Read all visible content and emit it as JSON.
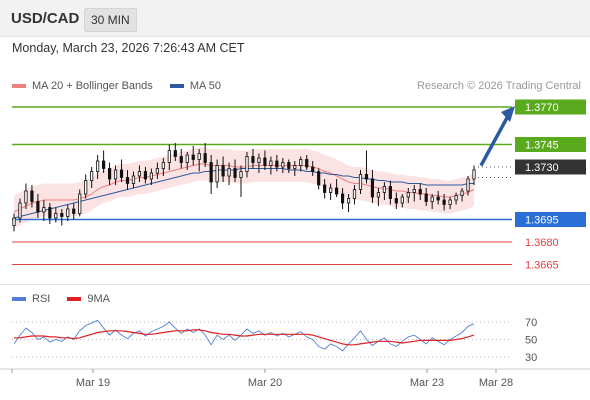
{
  "header": {
    "pair": "USD/CAD",
    "timeframe": "30 MIN"
  },
  "date_text": "Monday, March 23, 2026 7:26:43 AM CET",
  "legend": {
    "items": [
      {
        "label": "MA 20 + Bollinger Bands",
        "color": "#f08080"
      },
      {
        "label": "MA 50",
        "color": "#2b5aa0"
      }
    ],
    "credit": "Research © 2026 Trading Central"
  },
  "rsi_legend": {
    "items": [
      {
        "label": "RSI",
        "color": "#4f7fd6"
      },
      {
        "label": "9MA",
        "color": "#e02020"
      }
    ]
  },
  "chart_data": [
    {
      "type": "candlestick",
      "ylim": [
        1.365,
        1.378
      ],
      "current_price": {
        "value": 1.373,
        "label": "1.3730",
        "color": "#333333"
      },
      "levels": [
        {
          "value": 1.377,
          "label": "1.3770",
          "color": "#5aaa1e",
          "kind": "resistance"
        },
        {
          "value": 1.3745,
          "label": "1.3745",
          "color": "#5aaa1e",
          "kind": "resistance"
        },
        {
          "value": 1.3695,
          "label": "1.3695",
          "color": "#2a6fd6",
          "kind": "pivot"
        },
        {
          "value": 1.368,
          "label": "1.3680",
          "color": "#e04040",
          "kind": "support"
        },
        {
          "value": 1.3665,
          "label": "1.3665",
          "color": "#e04040",
          "kind": "support"
        }
      ],
      "forecast_arrow": {
        "from": 1.3731,
        "to": 1.3768,
        "color": "#2b5aa0"
      },
      "x_ticks": [
        "Mar 19",
        "Mar 20",
        "Mar 23",
        "Mar 28"
      ],
      "ohlc": [
        [
          1.3691,
          1.3699,
          1.3687,
          1.3696
        ],
        [
          1.3696,
          1.3709,
          1.3693,
          1.3706
        ],
        [
          1.3706,
          1.3719,
          1.3702,
          1.3714
        ],
        [
          1.3714,
          1.3718,
          1.3703,
          1.3707
        ],
        [
          1.3707,
          1.3712,
          1.3696,
          1.37
        ],
        [
          1.37,
          1.3708,
          1.3694,
          1.3703
        ],
        [
          1.3703,
          1.3706,
          1.3692,
          1.3696
        ],
        [
          1.3696,
          1.3703,
          1.3693,
          1.3699
        ],
        [
          1.3699,
          1.3702,
          1.3691,
          1.3697
        ],
        [
          1.3697,
          1.3705,
          1.3694,
          1.3702
        ],
        [
          1.3702,
          1.3706,
          1.3695,
          1.3699
        ],
        [
          1.3699,
          1.3715,
          1.3697,
          1.3712
        ],
        [
          1.3712,
          1.3725,
          1.3709,
          1.3721
        ],
        [
          1.3721,
          1.373,
          1.3716,
          1.3727
        ],
        [
          1.3727,
          1.3738,
          1.3722,
          1.3734
        ],
        [
          1.3734,
          1.3741,
          1.3726,
          1.3729
        ],
        [
          1.3729,
          1.3733,
          1.3718,
          1.3722
        ],
        [
          1.3722,
          1.3731,
          1.3718,
          1.3728
        ],
        [
          1.3728,
          1.3735,
          1.372,
          1.3723
        ],
        [
          1.3723,
          1.3728,
          1.3715,
          1.3719
        ],
        [
          1.3719,
          1.3727,
          1.3716,
          1.3724
        ],
        [
          1.3724,
          1.3731,
          1.372,
          1.3727
        ],
        [
          1.3727,
          1.373,
          1.3719,
          1.3722
        ],
        [
          1.3722,
          1.3729,
          1.3718,
          1.3726
        ],
        [
          1.3726,
          1.3733,
          1.3722,
          1.3729
        ],
        [
          1.3729,
          1.3736,
          1.3724,
          1.3733
        ],
        [
          1.3733,
          1.3745,
          1.3728,
          1.3741
        ],
        [
          1.3741,
          1.3746,
          1.3734,
          1.3737
        ],
        [
          1.3737,
          1.3742,
          1.3729,
          1.3733
        ],
        [
          1.3733,
          1.374,
          1.3728,
          1.3738
        ],
        [
          1.3738,
          1.3744,
          1.3731,
          1.3735
        ],
        [
          1.3735,
          1.3742,
          1.3727,
          1.3739
        ],
        [
          1.3739,
          1.3746,
          1.373,
          1.3733
        ],
        [
          1.3733,
          1.3738,
          1.3712,
          1.372
        ],
        [
          1.372,
          1.3735,
          1.3716,
          1.3731
        ],
        [
          1.3731,
          1.3737,
          1.372,
          1.3724
        ],
        [
          1.3724,
          1.3733,
          1.3718,
          1.3729
        ],
        [
          1.3729,
          1.3735,
          1.372,
          1.3723
        ],
        [
          1.3723,
          1.3731,
          1.371,
          1.3727
        ],
        [
          1.3727,
          1.374,
          1.3723,
          1.3737
        ],
        [
          1.3737,
          1.3742,
          1.3729,
          1.3733
        ],
        [
          1.3733,
          1.3739,
          1.3726,
          1.3736
        ],
        [
          1.3736,
          1.3741,
          1.3728,
          1.3731
        ],
        [
          1.3731,
          1.3737,
          1.3725,
          1.3734
        ],
        [
          1.3734,
          1.3738,
          1.3727,
          1.373
        ],
        [
          1.373,
          1.3736,
          1.3726,
          1.3733
        ],
        [
          1.3733,
          1.3735,
          1.3726,
          1.3729
        ],
        [
          1.3729,
          1.3734,
          1.3724,
          1.3731
        ],
        [
          1.3731,
          1.3737,
          1.3727,
          1.3735
        ],
        [
          1.3735,
          1.3738,
          1.3728,
          1.373
        ],
        [
          1.373,
          1.3734,
          1.3724,
          1.3727
        ],
        [
          1.3727,
          1.3729,
          1.3715,
          1.3718
        ],
        [
          1.3718,
          1.3722,
          1.3709,
          1.3713
        ],
        [
          1.3713,
          1.3719,
          1.3708,
          1.3716
        ],
        [
          1.3716,
          1.3722,
          1.371,
          1.3712
        ],
        [
          1.3712,
          1.3716,
          1.3702,
          1.3706
        ],
        [
          1.3706,
          1.3712,
          1.37,
          1.3709
        ],
        [
          1.3709,
          1.3718,
          1.3705,
          1.3715
        ],
        [
          1.3715,
          1.3728,
          1.3712,
          1.3725
        ],
        [
          1.3725,
          1.3741,
          1.3719,
          1.3722
        ],
        [
          1.3722,
          1.3728,
          1.3706,
          1.371
        ],
        [
          1.371,
          1.3716,
          1.3704,
          1.3713
        ],
        [
          1.3713,
          1.372,
          1.3708,
          1.3717
        ],
        [
          1.3717,
          1.3721,
          1.3705,
          1.3709
        ],
        [
          1.3709,
          1.3713,
          1.3702,
          1.3706
        ],
        [
          1.3706,
          1.3712,
          1.3703,
          1.371
        ],
        [
          1.371,
          1.3716,
          1.3706,
          1.3713
        ],
        [
          1.3713,
          1.3718,
          1.3707,
          1.3715
        ],
        [
          1.3715,
          1.3719,
          1.3708,
          1.3712
        ],
        [
          1.3712,
          1.3716,
          1.3704,
          1.3707
        ],
        [
          1.3707,
          1.3712,
          1.3702,
          1.371
        ],
        [
          1.371,
          1.3714,
          1.3705,
          1.3708
        ],
        [
          1.3708,
          1.3712,
          1.3701,
          1.3705
        ],
        [
          1.3705,
          1.371,
          1.3702,
          1.3708
        ],
        [
          1.3708,
          1.3713,
          1.3705,
          1.3711
        ],
        [
          1.3711,
          1.3716,
          1.3707,
          1.3714
        ],
        [
          1.3714,
          1.3724,
          1.3711,
          1.3722
        ],
        [
          1.3722,
          1.3731,
          1.3718,
          1.3728
        ]
      ],
      "ma20": [
        1.37,
        1.3702,
        1.3704,
        1.3706,
        1.3707,
        1.3708,
        1.3708,
        1.3708,
        1.3708,
        1.3708,
        1.3708,
        1.3709,
        1.371,
        1.3712,
        1.3715,
        1.3717,
        1.3718,
        1.372,
        1.3721,
        1.3721,
        1.3722,
        1.3723,
        1.3723,
        1.3724,
        1.3725,
        1.3726,
        1.3727,
        1.3728,
        1.3729,
        1.373,
        1.3731,
        1.3732,
        1.3732,
        1.3731,
        1.3731,
        1.3731,
        1.3731,
        1.373,
        1.373,
        1.373,
        1.3731,
        1.3731,
        1.3731,
        1.3731,
        1.3731,
        1.3731,
        1.3731,
        1.3731,
        1.3731,
        1.3731,
        1.373,
        1.3729,
        1.3727,
        1.3726,
        1.3724,
        1.3722,
        1.372,
        1.3719,
        1.3719,
        1.3718,
        1.3717,
        1.3716,
        1.3716,
        1.3715,
        1.3714,
        1.3714,
        1.3713,
        1.3713,
        1.3712,
        1.3712,
        1.3711,
        1.3711,
        1.371,
        1.371,
        1.3711,
        1.3712,
        1.3713,
        1.3715
      ],
      "ma50": [
        1.3696,
        1.3697,
        1.3698,
        1.3699,
        1.37,
        1.3701,
        1.3702,
        1.3703,
        1.3704,
        1.3705,
        1.3706,
        1.3707,
        1.3708,
        1.3709,
        1.371,
        1.3711,
        1.3712,
        1.3713,
        1.3714,
        1.3715,
        1.3716,
        1.3717,
        1.3718,
        1.3719,
        1.372,
        1.3721,
        1.3722,
        1.3723,
        1.3724,
        1.3725,
        1.3726,
        1.3726,
        1.3727,
        1.3727,
        1.3728,
        1.3728,
        1.3728,
        1.3728,
        1.3729,
        1.3729,
        1.3729,
        1.3729,
        1.3729,
        1.3729,
        1.3729,
        1.3729,
        1.3728,
        1.3728,
        1.3728,
        1.3727,
        1.3727,
        1.3726,
        1.3726,
        1.3725,
        1.3725,
        1.3724,
        1.3724,
        1.3723,
        1.3723,
        1.3722,
        1.3722,
        1.3721,
        1.3721,
        1.372,
        1.372,
        1.372,
        1.3719,
        1.3719,
        1.3719,
        1.3718,
        1.3718,
        1.3718,
        1.3718,
        1.3718,
        1.3718,
        1.3718,
        1.3719,
        1.3719
      ],
      "bb_width": 0.0011
    },
    {
      "type": "line",
      "title": "RSI",
      "ylim": [
        20,
        80
      ],
      "y_ticks": [
        70,
        50,
        30
      ],
      "series": [
        {
          "name": "RSI",
          "color": "#4f7fd6",
          "values": [
            45,
            55,
            63,
            58,
            50,
            53,
            47,
            50,
            48,
            53,
            50,
            60,
            66,
            69,
            72,
            63,
            55,
            61,
            55,
            51,
            57,
            60,
            54,
            59,
            62,
            65,
            70,
            63,
            57,
            62,
            58,
            62,
            55,
            44,
            55,
            50,
            55,
            49,
            55,
            62,
            57,
            60,
            55,
            58,
            54,
            57,
            53,
            56,
            59,
            53,
            50,
            42,
            39,
            45,
            42,
            37,
            45,
            52,
            60,
            50,
            43,
            48,
            52,
            45,
            42,
            48,
            53,
            55,
            50,
            45,
            52,
            48,
            44,
            50,
            54,
            58,
            65,
            68
          ]
        },
        {
          "name": "9MA",
          "color": "#e02020",
          "values": [
            52,
            52,
            53,
            54,
            54,
            54,
            53,
            53,
            52,
            52,
            51,
            52,
            54,
            56,
            58,
            59,
            60,
            60,
            60,
            59,
            58,
            57,
            56,
            56,
            57,
            58,
            59,
            60,
            60,
            60,
            61,
            61,
            60,
            58,
            57,
            56,
            56,
            55,
            54,
            54,
            55,
            56,
            56,
            56,
            56,
            56,
            56,
            56,
            56,
            56,
            55,
            53,
            51,
            49,
            47,
            45,
            44,
            44,
            45,
            46,
            47,
            48,
            48,
            48,
            47,
            46,
            47,
            48,
            49,
            49,
            49,
            49,
            49,
            49,
            50,
            51,
            53,
            55
          ]
        }
      ]
    }
  ]
}
